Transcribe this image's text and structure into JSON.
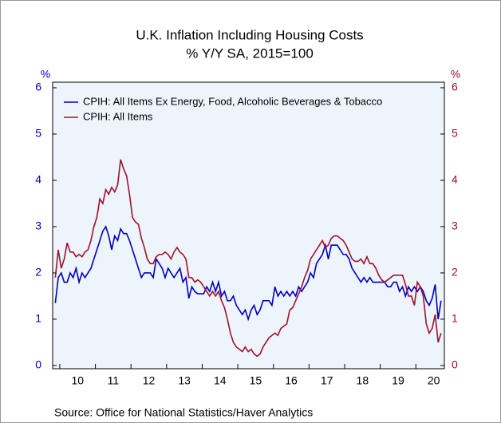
{
  "chart_data": {
    "type": "line",
    "title": "U.K. Inflation Including Housing Costs",
    "subtitle": "% Y/Y   SA, 2015=100",
    "y_label": "%",
    "y2_label": "%",
    "source": "Source:  Office for National Statistics/Haver Analytics",
    "legend": "upper left",
    "x": [
      2009.875,
      2009.958,
      2010.042,
      2010.125,
      2010.208,
      2010.292,
      2010.375,
      2010.458,
      2010.542,
      2010.625,
      2010.708,
      2010.792,
      2010.875,
      2010.958,
      2011.042,
      2011.125,
      2011.208,
      2011.292,
      2011.375,
      2011.458,
      2011.542,
      2011.625,
      2011.708,
      2011.792,
      2011.875,
      2011.958,
      2012.042,
      2012.125,
      2012.208,
      2012.292,
      2012.375,
      2012.458,
      2012.542,
      2012.625,
      2012.708,
      2012.792,
      2012.875,
      2012.958,
      2013.042,
      2013.125,
      2013.208,
      2013.292,
      2013.375,
      2013.458,
      2013.542,
      2013.625,
      2013.708,
      2013.792,
      2013.875,
      2013.958,
      2014.042,
      2014.125,
      2014.208,
      2014.292,
      2014.375,
      2014.458,
      2014.542,
      2014.625,
      2014.708,
      2014.792,
      2014.875,
      2014.958,
      2015.042,
      2015.125,
      2015.208,
      2015.292,
      2015.375,
      2015.458,
      2015.542,
      2015.625,
      2015.708,
      2015.792,
      2015.875,
      2015.958,
      2016.042,
      2016.125,
      2016.208,
      2016.292,
      2016.375,
      2016.458,
      2016.542,
      2016.625,
      2016.708,
      2016.792,
      2016.875,
      2016.958,
      2017.042,
      2017.125,
      2017.208,
      2017.292,
      2017.375,
      2017.458,
      2017.542,
      2017.625,
      2017.708,
      2017.792,
      2017.875,
      2017.958,
      2018.042,
      2018.125,
      2018.208,
      2018.292,
      2018.375,
      2018.458,
      2018.542,
      2018.625,
      2018.708,
      2018.792,
      2018.875,
      2018.958,
      2019.042,
      2019.125,
      2019.208,
      2019.292,
      2019.375,
      2019.458,
      2019.542,
      2019.625,
      2019.708,
      2019.792,
      2019.875,
      2019.958,
      2020.042,
      2020.125,
      2020.208,
      2020.292,
      2020.375,
      2020.458,
      2020.542,
      2020.625,
      2020.708
    ],
    "series": [
      {
        "name": "CPIH: All Items Ex Energy, Food, Alcoholic Beverages & Tobacco",
        "color": "#0000c0",
        "values": [
          1.35,
          1.9,
          2.0,
          1.8,
          1.8,
          2.0,
          1.9,
          2.1,
          1.8,
          2.0,
          1.9,
          2.0,
          2.1,
          2.3,
          2.5,
          2.7,
          2.9,
          3.0,
          2.8,
          2.5,
          2.8,
          2.7,
          2.95,
          2.85,
          2.85,
          2.7,
          2.5,
          2.3,
          2.1,
          1.9,
          2.0,
          2.0,
          2.0,
          1.9,
          2.3,
          2.2,
          2.1,
          1.9,
          2.1,
          2.0,
          1.9,
          2.0,
          2.1,
          1.8,
          1.9,
          1.45,
          1.7,
          1.6,
          1.55,
          1.55,
          1.55,
          1.7,
          1.6,
          1.8,
          1.6,
          1.8,
          1.5,
          1.6,
          1.4,
          1.4,
          1.5,
          1.3,
          1.2,
          1.1,
          1.2,
          1.0,
          1.2,
          1.3,
          1.1,
          1.2,
          1.4,
          1.4,
          1.4,
          1.3,
          1.7,
          1.5,
          1.6,
          1.5,
          1.6,
          1.5,
          1.6,
          1.5,
          1.7,
          1.6,
          1.7,
          1.8,
          2.0,
          1.9,
          2.2,
          2.3,
          2.4,
          2.6,
          2.3,
          2.6,
          2.6,
          2.6,
          2.5,
          2.4,
          2.4,
          2.3,
          2.1,
          2.0,
          1.9,
          1.8,
          1.9,
          1.8,
          1.9,
          1.8,
          1.8,
          1.8,
          1.8,
          1.8,
          1.7,
          1.7,
          1.8,
          1.8,
          1.6,
          1.7,
          1.5,
          1.7,
          1.6,
          1.7,
          1.6,
          1.7,
          1.6,
          1.4,
          1.3,
          1.45,
          1.75,
          1.0,
          1.4
        ]
      },
      {
        "name": "CPIH: All Items",
        "color": "#a0102a",
        "values": [
          1.9,
          2.5,
          2.1,
          2.3,
          2.65,
          2.45,
          2.45,
          2.35,
          2.4,
          2.35,
          2.45,
          2.5,
          2.7,
          3.0,
          3.2,
          3.6,
          3.5,
          3.8,
          3.7,
          3.85,
          3.75,
          3.9,
          4.45,
          4.25,
          4.1,
          3.7,
          3.2,
          3.1,
          3.05,
          2.75,
          2.55,
          2.3,
          2.2,
          2.2,
          2.35,
          2.4,
          2.4,
          2.45,
          2.4,
          2.3,
          2.45,
          2.55,
          2.45,
          2.4,
          2.3,
          1.9,
          1.9,
          1.8,
          1.85,
          1.8,
          1.7,
          1.6,
          1.5,
          1.6,
          1.5,
          1.6,
          1.4,
          1.25,
          1.0,
          0.7,
          0.5,
          0.4,
          0.35,
          0.3,
          0.4,
          0.3,
          0.35,
          0.25,
          0.2,
          0.25,
          0.4,
          0.5,
          0.6,
          0.65,
          0.7,
          0.65,
          0.8,
          0.85,
          0.9,
          1.2,
          1.25,
          1.4,
          1.55,
          1.7,
          1.9,
          2.05,
          2.3,
          2.4,
          2.5,
          2.6,
          2.7,
          2.55,
          2.6,
          2.75,
          2.8,
          2.8,
          2.75,
          2.7,
          2.6,
          2.45,
          2.3,
          2.25,
          2.25,
          2.3,
          2.2,
          2.35,
          2.2,
          2.2,
          2.1,
          1.95,
          1.85,
          1.8,
          1.85,
          1.9,
          1.95,
          1.95,
          1.95,
          1.95,
          1.75,
          1.5,
          1.5,
          1.3,
          1.8,
          1.7,
          1.5,
          0.9,
          0.7,
          0.8,
          1.1,
          0.5,
          0.7
        ],
        "axis": "y2"
      }
    ],
    "xlim": [
      2009.8,
      2020.8
    ],
    "xticks": [
      {
        "value": 2010.5,
        "label": "10"
      },
      {
        "value": 2011.5,
        "label": "11"
      },
      {
        "value": 2012.5,
        "label": "12"
      },
      {
        "value": 2013.5,
        "label": "13"
      },
      {
        "value": 2014.5,
        "label": "14"
      },
      {
        "value": 2015.5,
        "label": "15"
      },
      {
        "value": 2016.5,
        "label": "16"
      },
      {
        "value": 2017.5,
        "label": "17"
      },
      {
        "value": 2018.5,
        "label": "18"
      },
      {
        "value": 2019.5,
        "label": "19"
      },
      {
        "value": 2020.5,
        "label": "20"
      }
    ],
    "ylim": [
      -0.07,
      6.12
    ],
    "yticks": [
      0,
      1,
      2,
      3,
      4,
      5,
      6
    ],
    "y2lim": [
      -0.07,
      6.12
    ],
    "y2ticks": [
      0,
      1,
      2,
      3,
      4,
      5,
      6
    ],
    "background": "#eef4fc"
  }
}
